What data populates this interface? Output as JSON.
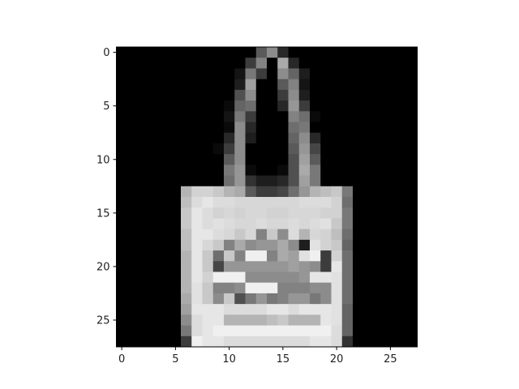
{
  "chart_data": {
    "type": "heatmap",
    "colormap": "gray",
    "value_range": [
      0,
      255
    ],
    "grid": false,
    "xlabel": "",
    "ylabel": "",
    "x_ticks": [
      0,
      5,
      10,
      15,
      20,
      25
    ],
    "y_ticks": [
      0,
      5,
      10,
      15,
      20,
      25
    ],
    "rows": 28,
    "cols": 28,
    "x_tick_labels": [
      "0",
      "5",
      "10",
      "15",
      "20",
      "25"
    ],
    "y_tick_labels": [
      "0",
      "5",
      "10",
      "15",
      "20",
      "25"
    ],
    "pixels": [
      [
        0,
        0,
        0,
        0,
        0,
        0,
        0,
        0,
        0,
        0,
        0,
        0,
        0,
        90,
        140,
        40,
        0,
        0,
        0,
        0,
        0,
        0,
        0,
        0,
        0,
        0,
        0,
        0
      ],
      [
        0,
        0,
        0,
        0,
        0,
        0,
        0,
        0,
        0,
        0,
        0,
        0,
        60,
        130,
        0,
        170,
        40,
        0,
        0,
        0,
        0,
        0,
        0,
        0,
        0,
        0,
        0,
        0
      ],
      [
        0,
        0,
        0,
        0,
        0,
        0,
        0,
        0,
        0,
        0,
        0,
        20,
        120,
        60,
        0,
        140,
        100,
        30,
        0,
        0,
        0,
        0,
        0,
        0,
        0,
        0,
        0,
        0
      ],
      [
        0,
        0,
        0,
        0,
        0,
        0,
        0,
        0,
        0,
        0,
        0,
        30,
        160,
        0,
        0,
        90,
        130,
        20,
        0,
        0,
        0,
        0,
        0,
        0,
        0,
        0,
        0,
        0
      ],
      [
        0,
        0,
        0,
        0,
        0,
        0,
        0,
        0,
        0,
        0,
        0,
        80,
        140,
        0,
        0,
        60,
        140,
        30,
        0,
        0,
        0,
        0,
        0,
        0,
        0,
        0,
        0,
        0
      ],
      [
        0,
        0,
        0,
        0,
        0,
        0,
        0,
        0,
        0,
        0,
        10,
        100,
        110,
        0,
        0,
        40,
        150,
        60,
        0,
        0,
        0,
        0,
        0,
        0,
        0,
        0,
        0,
        0
      ],
      [
        0,
        0,
        0,
        0,
        0,
        0,
        0,
        0,
        0,
        0,
        20,
        120,
        60,
        0,
        0,
        0,
        130,
        110,
        10,
        0,
        0,
        0,
        0,
        0,
        0,
        0,
        0,
        0
      ],
      [
        0,
        0,
        0,
        0,
        0,
        0,
        0,
        0,
        0,
        0,
        10,
        140,
        40,
        0,
        0,
        0,
        110,
        120,
        0,
        0,
        0,
        0,
        0,
        0,
        0,
        0,
        0,
        0
      ],
      [
        0,
        0,
        0,
        0,
        0,
        0,
        0,
        0,
        0,
        0,
        40,
        140,
        30,
        0,
        0,
        0,
        100,
        140,
        40,
        0,
        0,
        0,
        0,
        0,
        0,
        0,
        0,
        0
      ],
      [
        0,
        0,
        0,
        0,
        0,
        0,
        0,
        0,
        0,
        10,
        60,
        140,
        0,
        0,
        0,
        0,
        90,
        150,
        70,
        0,
        0,
        0,
        0,
        0,
        0,
        0,
        0,
        0
      ],
      [
        0,
        0,
        0,
        0,
        0,
        0,
        0,
        0,
        0,
        0,
        90,
        140,
        0,
        0,
        0,
        0,
        80,
        160,
        90,
        0,
        0,
        0,
        0,
        0,
        0,
        0,
        0,
        0
      ],
      [
        0,
        0,
        0,
        0,
        0,
        0,
        0,
        0,
        0,
        0,
        120,
        150,
        10,
        0,
        0,
        10,
        80,
        170,
        120,
        0,
        0,
        0,
        0,
        0,
        0,
        0,
        0,
        0
      ],
      [
        0,
        0,
        0,
        0,
        0,
        0,
        0,
        0,
        0,
        0,
        110,
        150,
        50,
        30,
        30,
        40,
        80,
        160,
        120,
        0,
        0,
        0,
        0,
        0,
        0,
        0,
        0,
        0
      ],
      [
        0,
        0,
        0,
        0,
        0,
        0,
        180,
        210,
        210,
        200,
        180,
        170,
        90,
        60,
        60,
        70,
        110,
        150,
        180,
        190,
        200,
        120,
        0,
        0,
        0,
        0,
        0,
        0
      ],
      [
        0,
        0,
        0,
        0,
        0,
        0,
        190,
        220,
        230,
        220,
        220,
        215,
        215,
        215,
        215,
        215,
        215,
        220,
        220,
        220,
        210,
        110,
        0,
        0,
        0,
        0,
        0,
        0
      ],
      [
        0,
        0,
        0,
        0,
        0,
        0,
        200,
        230,
        220,
        210,
        215,
        210,
        215,
        215,
        210,
        210,
        215,
        215,
        215,
        210,
        210,
        120,
        0,
        0,
        0,
        0,
        0,
        0
      ],
      [
        0,
        0,
        0,
        0,
        0,
        0,
        200,
        230,
        220,
        225,
        220,
        215,
        215,
        220,
        215,
        215,
        220,
        215,
        220,
        225,
        200,
        120,
        0,
        0,
        0,
        0,
        0,
        0
      ],
      [
        0,
        0,
        0,
        0,
        0,
        0,
        190,
        230,
        230,
        220,
        215,
        200,
        215,
        130,
        200,
        140,
        220,
        180,
        215,
        210,
        190,
        110,
        0,
        0,
        0,
        0,
        0,
        0
      ],
      [
        0,
        0,
        0,
        0,
        0,
        0,
        190,
        230,
        215,
        200,
        130,
        170,
        140,
        150,
        150,
        170,
        140,
        30,
        225,
        210,
        200,
        100,
        0,
        0,
        0,
        0,
        0,
        0
      ],
      [
        0,
        0,
        0,
        0,
        0,
        0,
        180,
        230,
        200,
        110,
        200,
        130,
        240,
        240,
        130,
        170,
        160,
        225,
        240,
        60,
        210,
        110,
        0,
        0,
        0,
        0,
        0,
        0
      ],
      [
        0,
        0,
        0,
        0,
        0,
        0,
        180,
        230,
        200,
        70,
        150,
        150,
        150,
        150,
        150,
        150,
        160,
        150,
        140,
        60,
        230,
        110,
        0,
        0,
        0,
        0,
        0,
        0
      ],
      [
        0,
        0,
        0,
        0,
        0,
        0,
        180,
        230,
        210,
        240,
        240,
        240,
        140,
        140,
        140,
        140,
        140,
        150,
        230,
        230,
        225,
        110,
        0,
        0,
        0,
        0,
        0,
        0
      ],
      [
        0,
        0,
        0,
        0,
        0,
        0,
        180,
        225,
        200,
        130,
        130,
        140,
        240,
        240,
        240,
        130,
        130,
        130,
        140,
        140,
        225,
        110,
        0,
        0,
        0,
        0,
        0,
        0
      ],
      [
        0,
        0,
        0,
        0,
        0,
        0,
        170,
        225,
        200,
        140,
        200,
        80,
        120,
        150,
        120,
        130,
        150,
        150,
        120,
        140,
        225,
        110,
        0,
        0,
        0,
        0,
        0,
        0
      ],
      [
        0,
        0,
        0,
        0,
        0,
        0,
        160,
        230,
        230,
        230,
        220,
        220,
        220,
        220,
        230,
        230,
        220,
        230,
        230,
        230,
        225,
        100,
        0,
        0,
        0,
        0,
        0,
        0
      ],
      [
        0,
        0,
        0,
        0,
        0,
        0,
        140,
        220,
        230,
        230,
        180,
        180,
        180,
        180,
        190,
        200,
        180,
        180,
        180,
        230,
        225,
        100,
        0,
        0,
        0,
        0,
        0,
        0
      ],
      [
        0,
        0,
        0,
        0,
        0,
        0,
        120,
        220,
        230,
        240,
        240,
        240,
        240,
        240,
        240,
        240,
        240,
        240,
        240,
        240,
        220,
        100,
        0,
        0,
        0,
        0,
        0,
        0
      ],
      [
        0,
        0,
        0,
        0,
        0,
        0,
        60,
        240,
        230,
        230,
        220,
        220,
        220,
        220,
        220,
        220,
        220,
        220,
        230,
        230,
        220,
        50,
        0,
        0,
        0,
        0,
        0,
        0
      ]
    ]
  }
}
